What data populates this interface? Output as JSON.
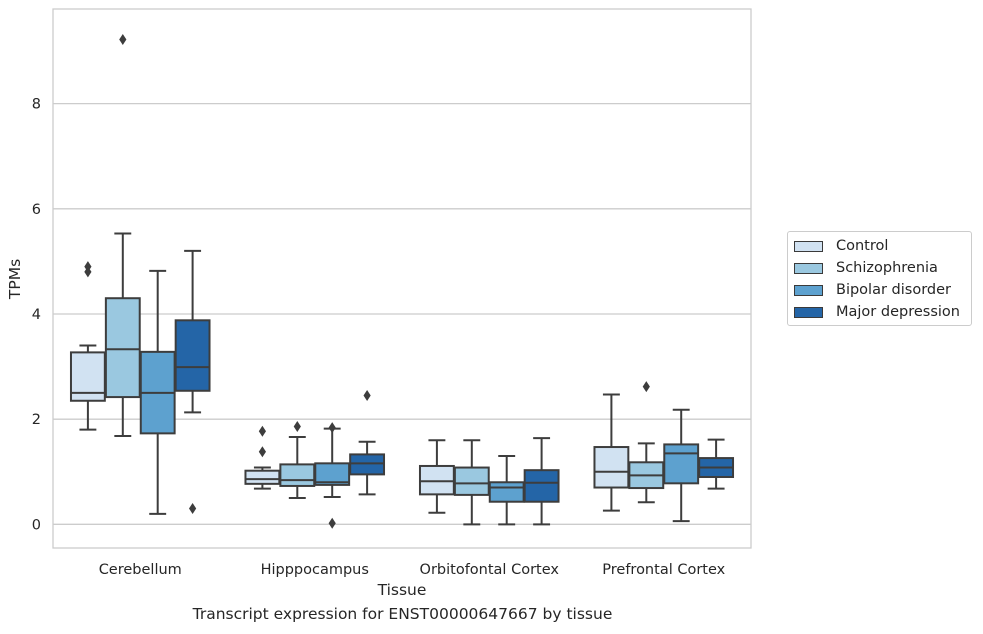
{
  "chart_data": {
    "type": "box",
    "ylabel": "TPMs",
    "xlabel": "Tissue",
    "caption": "Transcript expression for ENST00000647667 by tissue",
    "ylim": [
      -0.45,
      9.8
    ],
    "yticks": [
      "0",
      "2",
      "4",
      "6",
      "8"
    ],
    "grid": true,
    "legend_position": "right",
    "categories": [
      "Cerebellum",
      "Hipppocampus",
      "Orbitofontal Cortex",
      "Prefrontal Cortex"
    ],
    "series": [
      {
        "name": "Control",
        "color": "#d1e2f2",
        "boxes": [
          {
            "whislo": 1.8,
            "q1": 2.35,
            "med": 2.5,
            "q3": 3.27,
            "whishi": 3.4,
            "fliers": [
              4.8,
              4.9
            ]
          },
          {
            "whislo": 0.68,
            "q1": 0.77,
            "med": 0.86,
            "q3": 1.02,
            "whishi": 1.08,
            "fliers": [
              1.38,
              1.77
            ]
          },
          {
            "whislo": 0.22,
            "q1": 0.57,
            "med": 0.82,
            "q3": 1.11,
            "whishi": 1.6,
            "fliers": []
          },
          {
            "whislo": 0.26,
            "q1": 0.7,
            "med": 1.0,
            "q3": 1.47,
            "whishi": 2.47,
            "fliers": []
          }
        ]
      },
      {
        "name": "Schizophrenia",
        "color": "#9ac8e0",
        "boxes": [
          {
            "whislo": 1.68,
            "q1": 2.42,
            "med": 3.33,
            "q3": 4.3,
            "whishi": 5.53,
            "fliers": [
              9.22
            ]
          },
          {
            "whislo": 0.5,
            "q1": 0.73,
            "med": 0.84,
            "q3": 1.14,
            "whishi": 1.66,
            "fliers": [
              1.86
            ]
          },
          {
            "whislo": 0.0,
            "q1": 0.56,
            "med": 0.78,
            "q3": 1.08,
            "whishi": 1.6,
            "fliers": []
          },
          {
            "whislo": 0.42,
            "q1": 0.69,
            "med": 0.93,
            "q3": 1.18,
            "whishi": 1.54,
            "fliers": [
              2.62
            ]
          }
        ]
      },
      {
        "name": "Bipolar disorder",
        "color": "#5da1cf",
        "boxes": [
          {
            "whislo": 0.2,
            "q1": 1.73,
            "med": 2.5,
            "q3": 3.28,
            "whishi": 4.82,
            "fliers": []
          },
          {
            "whislo": 0.52,
            "q1": 0.75,
            "med": 0.8,
            "q3": 1.16,
            "whishi": 1.82,
            "fliers": [
              0.02,
              1.84
            ]
          },
          {
            "whislo": 0.0,
            "q1": 0.43,
            "med": 0.7,
            "q3": 0.8,
            "whishi": 1.3,
            "fliers": []
          },
          {
            "whislo": 0.06,
            "q1": 0.78,
            "med": 1.35,
            "q3": 1.52,
            "whishi": 2.18,
            "fliers": []
          }
        ]
      },
      {
        "name": "Major depression",
        "color": "#2465a7",
        "boxes": [
          {
            "whislo": 2.13,
            "q1": 2.54,
            "med": 2.99,
            "q3": 3.88,
            "whishi": 5.2,
            "fliers": [
              0.3
            ]
          },
          {
            "whislo": 0.57,
            "q1": 0.95,
            "med": 1.16,
            "q3": 1.33,
            "whishi": 1.57,
            "fliers": [
              2.45
            ]
          },
          {
            "whislo": 0.0,
            "q1": 0.43,
            "med": 0.79,
            "q3": 1.03,
            "whishi": 1.64,
            "fliers": []
          },
          {
            "whislo": 0.68,
            "q1": 0.9,
            "med": 1.08,
            "q3": 1.26,
            "whishi": 1.61,
            "fliers": []
          }
        ]
      }
    ]
  }
}
